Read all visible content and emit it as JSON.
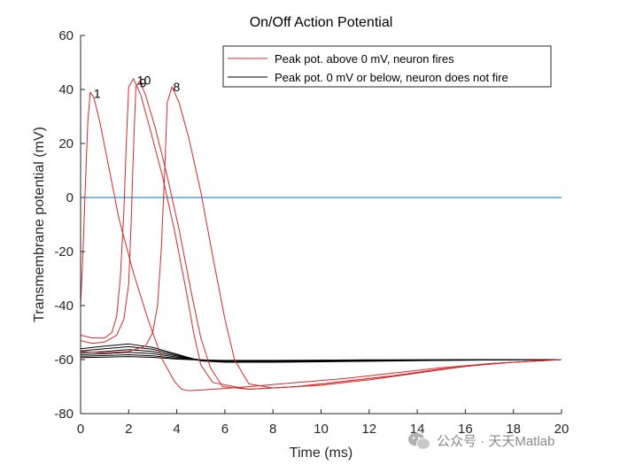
{
  "colors": {
    "fire": "#d62728",
    "nofire": "#000000",
    "zero_line": "#0072bd",
    "axis": "#262626",
    "watermark": "#8a8a8a"
  },
  "chart_data": {
    "type": "line",
    "title": "On/Off Action Potential",
    "xlabel": "Time (ms)",
    "ylabel": "Transmembrane potential (mV)",
    "xlim": [
      0,
      20
    ],
    "ylim": [
      -80,
      60
    ],
    "xticks": [
      0,
      2,
      4,
      6,
      8,
      10,
      12,
      14,
      16,
      18,
      20
    ],
    "yticks": [
      -80,
      -60,
      -40,
      -20,
      0,
      20,
      40,
      60
    ],
    "grid": false,
    "legend_position": "top-right",
    "legend": [
      {
        "label": "Peak pot. above 0 mV, neuron fires",
        "color": "#d62728"
      },
      {
        "label": "Peak pot. 0 mV or below, neuron does not fire",
        "color": "#000000"
      }
    ],
    "reference_line": {
      "y": 0,
      "color": "#0072bd"
    },
    "series": [
      {
        "name": "1",
        "class": "fire",
        "t": [
          0,
          0.1,
          0.2,
          0.3,
          0.4,
          0.55,
          0.8,
          1.2,
          1.6,
          2.2,
          2.8,
          3.4,
          3.9,
          4.2,
          4.5,
          5.5,
          7,
          9,
          11,
          13,
          15,
          17,
          18,
          19,
          20
        ],
        "v": [
          -40,
          -20,
          5,
          28,
          39,
          37,
          28,
          10,
          -8,
          -28,
          -45,
          -60,
          -68,
          -71,
          -71.5,
          -71,
          -70,
          -68.5,
          -67,
          -65,
          -63,
          -61.5,
          -61,
          -60.5,
          -60
        ]
      },
      {
        "name": "10",
        "class": "fire",
        "t": [
          0,
          0.5,
          1.0,
          1.3,
          1.5,
          1.65,
          1.8,
          1.9,
          2.0,
          2.2,
          2.5,
          2.9,
          3.4,
          3.9,
          4.4,
          4.7,
          5.0,
          5.5,
          7,
          9,
          11,
          13,
          15,
          17,
          19,
          20
        ],
        "v": [
          -51,
          -52,
          -52,
          -50,
          -44,
          -30,
          -5,
          20,
          41,
          44,
          38,
          25,
          8,
          -12,
          -35,
          -50,
          -62,
          -68.5,
          -71,
          -70,
          -68,
          -66,
          -63.5,
          -61.5,
          -60.5,
          -60
        ]
      },
      {
        "name": "9",
        "class": "fire",
        "t": [
          0,
          0.5,
          1.0,
          1.5,
          1.8,
          2.0,
          2.1,
          2.2,
          2.3,
          2.45,
          2.7,
          3.1,
          3.6,
          4.1,
          4.6,
          5.0,
          5.4,
          5.9,
          7,
          9,
          11,
          13,
          15,
          17,
          19,
          20
        ],
        "v": [
          -53,
          -54,
          -53.5,
          -51,
          -45,
          -32,
          -10,
          18,
          41,
          43,
          38,
          26,
          8,
          -12,
          -35,
          -52,
          -63,
          -70,
          -71,
          -70,
          -68,
          -66,
          -63.5,
          -61.5,
          -60.5,
          -60
        ]
      },
      {
        "name": "8",
        "class": "fire",
        "t": [
          0,
          1.0,
          2.0,
          2.7,
          3.0,
          3.2,
          3.35,
          3.5,
          3.6,
          3.8,
          4.1,
          4.5,
          5.0,
          5.5,
          6.0,
          6.4,
          7,
          8,
          10,
          12,
          14,
          16,
          18,
          20
        ],
        "v": [
          -57,
          -57.5,
          -57,
          -55,
          -50,
          -40,
          -20,
          10,
          35,
          41,
          35,
          22,
          2,
          -22,
          -45,
          -60,
          -69,
          -70.5,
          -69.5,
          -67.5,
          -65,
          -62.5,
          -61,
          -60
        ]
      },
      {
        "name": "nf1",
        "class": "nofire",
        "t": [
          0,
          1,
          2,
          3,
          4,
          5,
          6,
          8,
          10,
          12,
          14,
          16,
          18,
          20
        ],
        "v": [
          -56,
          -55,
          -54.2,
          -55.5,
          -58,
          -60.5,
          -61,
          -61,
          -60.8,
          -60.6,
          -60.4,
          -60.2,
          -60.1,
          -60
        ]
      },
      {
        "name": "nf2",
        "class": "nofire",
        "t": [
          0,
          1,
          2,
          3,
          4,
          5,
          6,
          8,
          10,
          12,
          14,
          16,
          18,
          20
        ],
        "v": [
          -56.8,
          -56,
          -55.2,
          -56.2,
          -58.3,
          -60.4,
          -60.9,
          -60.8,
          -60.6,
          -60.5,
          -60.3,
          -60.2,
          -60.1,
          -60
        ]
      },
      {
        "name": "nf3",
        "class": "nofire",
        "t": [
          0,
          1,
          2,
          3,
          4,
          5,
          6,
          8,
          10,
          12,
          14,
          16,
          18,
          20
        ],
        "v": [
          -57.5,
          -57,
          -56.3,
          -57,
          -58.7,
          -60.2,
          -60.7,
          -60.6,
          -60.5,
          -60.4,
          -60.3,
          -60.1,
          -60.05,
          -60
        ]
      },
      {
        "name": "nf4",
        "class": "nofire",
        "t": [
          0,
          1,
          2,
          3,
          4,
          5,
          6,
          8,
          10,
          12,
          14,
          16,
          18,
          20
        ],
        "v": [
          -58.2,
          -57.8,
          -57.3,
          -57.8,
          -59.1,
          -60.1,
          -60.5,
          -60.5,
          -60.4,
          -60.3,
          -60.2,
          -60.1,
          -60,
          -60
        ]
      },
      {
        "name": "nf5",
        "class": "nofire",
        "t": [
          0,
          1,
          2,
          3,
          4,
          5,
          6,
          8,
          10,
          12,
          14,
          16,
          18,
          20
        ],
        "v": [
          -58.8,
          -58.5,
          -58.2,
          -58.6,
          -59.5,
          -60.1,
          -60.4,
          -60.4,
          -60.3,
          -60.2,
          -60.1,
          -60.05,
          -60,
          -60
        ]
      },
      {
        "name": "nf6",
        "class": "nofire",
        "t": [
          0,
          1,
          2,
          3,
          4,
          5,
          6,
          8,
          10,
          12,
          14,
          16,
          18,
          20
        ],
        "v": [
          -59.3,
          -59.1,
          -58.9,
          -59.2,
          -59.8,
          -60.2,
          -60.3,
          -60.3,
          -60.2,
          -60.1,
          -60.1,
          -60,
          -60,
          -60
        ]
      }
    ],
    "annotations": [
      {
        "text": "1",
        "t": 0.55,
        "v": 38.5
      },
      {
        "text": "10",
        "t": 2.35,
        "v": 43.5
      },
      {
        "text": "9",
        "t": 2.45,
        "v": 42.5
      },
      {
        "text": "8",
        "t": 3.85,
        "v": 41
      }
    ]
  },
  "watermark": {
    "text": "公众号 · 天天Matlab",
    "icon": "wechat-icon"
  }
}
